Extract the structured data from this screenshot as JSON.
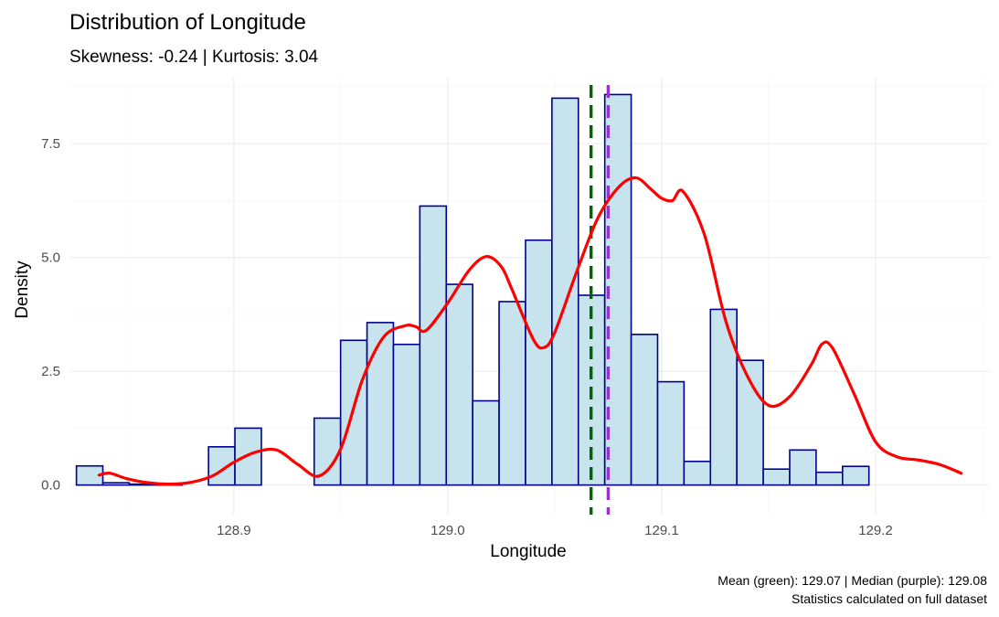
{
  "chart_data": {
    "type": "bar",
    "title": "Distribution of Longitude",
    "subtitle": "Skewness: -0.24 | Kurtosis: 3.04",
    "xlabel": "Longitude",
    "ylabel": "Density",
    "xlim": [
      128.824,
      129.253
    ],
    "ylim": [
      -0.65,
      8.95
    ],
    "x_ticks": [
      128.9,
      129.0,
      129.1,
      129.2
    ],
    "x_tick_labels": [
      "128.9",
      "129.0",
      "129.1",
      "129.2"
    ],
    "y_ticks": [
      0,
      2.5,
      5,
      7.5
    ],
    "y_tick_labels": [
      "0.0",
      "2.5",
      "5.0",
      "7.5"
    ],
    "grid": true,
    "bin_width": 0.01235,
    "bin_start": 128.8264,
    "bars": [
      0.42,
      0.05,
      0.02,
      0.03,
      0.0,
      0.84,
      1.25,
      0.0,
      0.0,
      1.47,
      3.18,
      3.57,
      3.09,
      6.13,
      4.41,
      1.85,
      4.03,
      5.38,
      8.5,
      4.17,
      8.58,
      3.31,
      2.27,
      0.52,
      3.86,
      2.74,
      0.35,
      0.77,
      0.28,
      0.41
    ],
    "density_curve": {
      "x": [
        128.837,
        128.842,
        128.85,
        128.86,
        128.87,
        128.88,
        128.89,
        128.9,
        128.91,
        128.92,
        128.93,
        128.94,
        128.95,
        128.96,
        128.97,
        128.98,
        128.985,
        128.99,
        129.0,
        129.01,
        129.018,
        129.025,
        129.03,
        129.04,
        129.045,
        129.05,
        129.06,
        129.07,
        129.08,
        129.088,
        129.095,
        129.1,
        129.105,
        129.11,
        129.12,
        129.13,
        129.14,
        129.15,
        129.16,
        129.17,
        129.175,
        129.18,
        129.19,
        129.2,
        129.21,
        129.22,
        129.23,
        129.24
      ],
      "y": [
        0.22,
        0.26,
        0.14,
        0.05,
        0.02,
        0.06,
        0.2,
        0.5,
        0.72,
        0.77,
        0.45,
        0.2,
        0.8,
        2.3,
        3.25,
        3.5,
        3.48,
        3.4,
        4.0,
        4.72,
        5.02,
        4.8,
        4.3,
        3.2,
        3.02,
        3.35,
        4.65,
        5.85,
        6.55,
        6.75,
        6.5,
        6.3,
        6.25,
        6.45,
        5.5,
        3.6,
        2.4,
        1.75,
        1.95,
        2.65,
        3.1,
        3.0,
        2.0,
        0.95,
        0.62,
        0.55,
        0.45,
        0.26
      ]
    },
    "mean": {
      "value": 129.067,
      "color": "#006400"
    },
    "median": {
      "value": 129.075,
      "color": "#9932cc"
    },
    "captions": [
      "Mean (green): 129.07 | Median (purple): 129.08",
      "Statistics calculated on full dataset"
    ]
  }
}
